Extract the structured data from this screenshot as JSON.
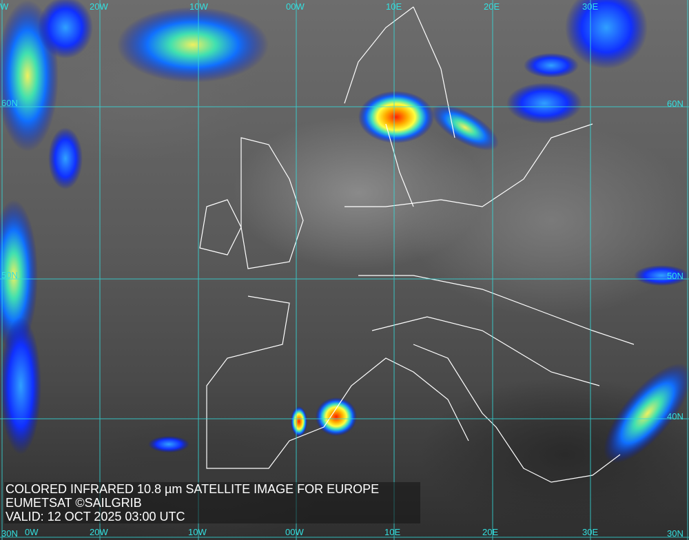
{
  "caption": {
    "line1": "COLORED INFRARED 10.8 µm SATELLITE IMAGE FOR EUROPE",
    "line2": "EUMETSAT ©SAILGRIB",
    "line3": "VALID:  12 OCT 2025 03:00 UTC"
  },
  "grid": {
    "top_labels": [
      "W",
      "20W",
      "10W",
      "00W",
      "10E",
      "20E",
      "30E"
    ],
    "bottom_labels": [
      "0W",
      "20W",
      "10W",
      "00W",
      "10E",
      "20E",
      "30E"
    ],
    "left_labels": [
      "60N",
      "50N",
      "30N"
    ],
    "right_labels": [
      "60N",
      "50N",
      "40N",
      "30N"
    ]
  },
  "colors": {
    "grid": "#33e0e0",
    "coast": "#ffffff"
  }
}
